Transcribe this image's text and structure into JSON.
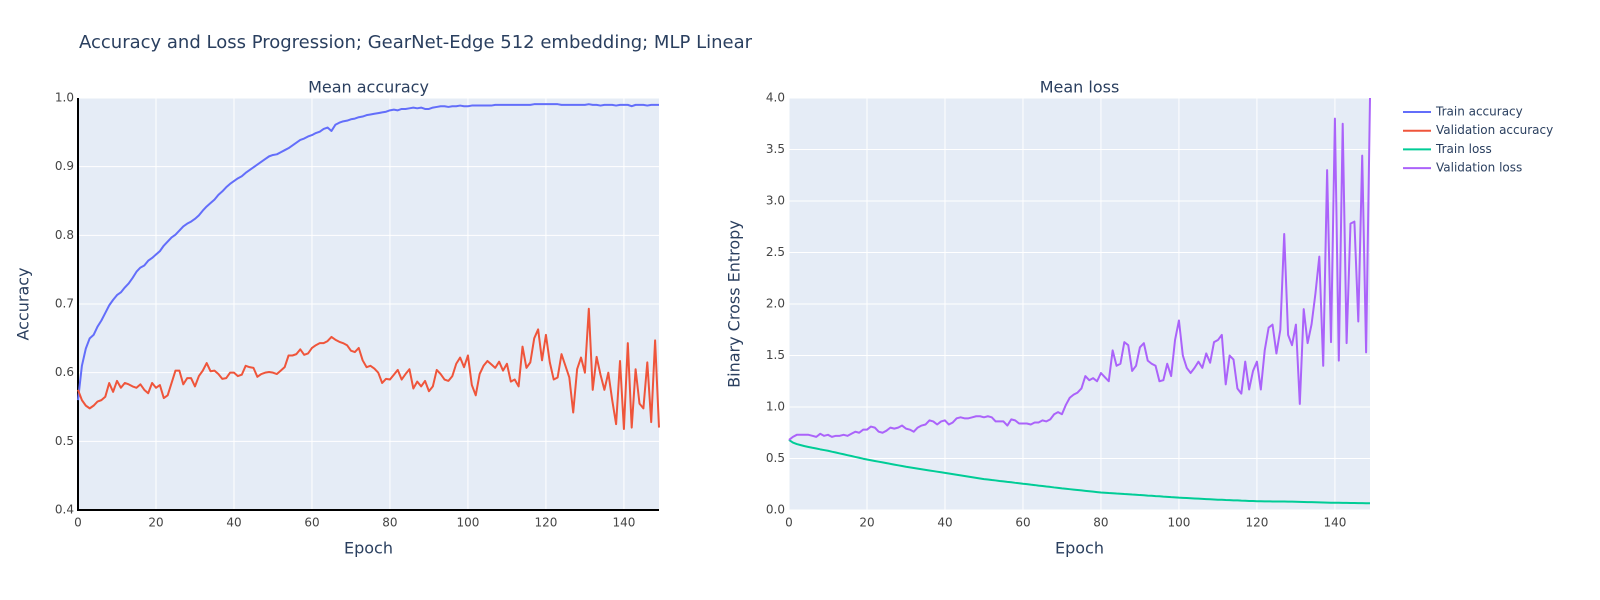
{
  "title": "Accuracy and Loss Progression; GearNet-Edge 512 embedding; MLP Linear",
  "chart_data": [
    {
      "type": "line",
      "title": "Mean accuracy",
      "x_label": "Epoch",
      "y_label": "Accuracy",
      "axis_lines": true,
      "x": [
        0,
        1,
        2,
        3,
        4,
        5,
        6,
        7,
        8,
        9,
        10,
        11,
        12,
        13,
        14,
        15,
        16,
        17,
        18,
        19,
        20,
        21,
        22,
        23,
        24,
        25,
        26,
        27,
        28,
        29,
        30,
        31,
        32,
        33,
        34,
        35,
        36,
        37,
        38,
        39,
        40,
        41,
        42,
        43,
        44,
        45,
        46,
        47,
        48,
        49,
        50,
        51,
        52,
        53,
        54,
        55,
        56,
        57,
        58,
        59,
        60,
        61,
        62,
        63,
        64,
        65,
        66,
        67,
        68,
        69,
        70,
        71,
        72,
        73,
        74,
        75,
        76,
        77,
        78,
        79,
        80,
        81,
        82,
        83,
        84,
        85,
        86,
        87,
        88,
        89,
        90,
        91,
        92,
        93,
        94,
        95,
        96,
        97,
        98,
        99,
        100,
        101,
        102,
        103,
        104,
        105,
        106,
        107,
        108,
        109,
        110,
        111,
        112,
        113,
        114,
        115,
        116,
        117,
        118,
        119,
        120,
        121,
        122,
        123,
        124,
        125,
        126,
        127,
        128,
        129,
        130,
        131,
        132,
        133,
        134,
        135,
        136,
        137,
        138,
        139,
        140,
        141,
        142,
        143,
        144,
        145,
        146,
        147,
        148,
        149
      ],
      "xlim": [
        0,
        149
      ],
      "xticks": [
        0,
        20,
        40,
        60,
        80,
        100,
        120,
        140
      ],
      "ylim": [
        0.4,
        1
      ],
      "yticks": [
        0.4,
        0.5,
        0.6,
        0.7,
        0.8,
        0.9,
        {
          "value": 1,
          "label": "1.0"
        }
      ],
      "grid": true,
      "series": [
        {
          "name": "Train accuracy",
          "color": "#636efa",
          "values": [
            0.56,
            0.61,
            0.635,
            0.65,
            0.655,
            0.667,
            0.676,
            0.687,
            0.698,
            0.706,
            0.713,
            0.717,
            0.724,
            0.73,
            0.738,
            0.747,
            0.753,
            0.756,
            0.763,
            0.767,
            0.772,
            0.777,
            0.785,
            0.791,
            0.797,
            0.801,
            0.807,
            0.813,
            0.817,
            0.82,
            0.824,
            0.829,
            0.836,
            0.842,
            0.847,
            0.852,
            0.859,
            0.864,
            0.87,
            0.875,
            0.879,
            0.883,
            0.886,
            0.891,
            0.895,
            0.899,
            0.903,
            0.907,
            0.911,
            0.915,
            0.917,
            0.918,
            0.921,
            0.924,
            0.927,
            0.931,
            0.935,
            0.939,
            0.941,
            0.944,
            0.946,
            0.949,
            0.951,
            0.955,
            0.957,
            0.952,
            0.961,
            0.964,
            0.966,
            0.967,
            0.969,
            0.97,
            0.972,
            0.973,
            0.975,
            0.976,
            0.977,
            0.978,
            0.979,
            0.98,
            0.982,
            0.983,
            0.982,
            0.984,
            0.984,
            0.985,
            0.986,
            0.985,
            0.986,
            0.984,
            0.984,
            0.986,
            0.987,
            0.988,
            0.988,
            0.987,
            0.988,
            0.988,
            0.989,
            0.988,
            0.988,
            0.989,
            0.989,
            0.989,
            0.989,
            0.989,
            0.989,
            0.99,
            0.99,
            0.99,
            0.99,
            0.99,
            0.99,
            0.99,
            0.99,
            0.99,
            0.99,
            0.991,
            0.991,
            0.991,
            0.991,
            0.991,
            0.991,
            0.991,
            0.99,
            0.99,
            0.99,
            0.99,
            0.99,
            0.99,
            0.99,
            0.991,
            0.99,
            0.99,
            0.989,
            0.99,
            0.99,
            0.99,
            0.989,
            0.99,
            0.99,
            0.99,
            0.988,
            0.99,
            0.99,
            0.99,
            0.989,
            0.99,
            0.99,
            0.99
          ]
        },
        {
          "name": "Validation accuracy",
          "color": "#ef553b",
          "values": [
            0.575,
            0.56,
            0.552,
            0.548,
            0.552,
            0.558,
            0.56,
            0.565,
            0.585,
            0.572,
            0.588,
            0.578,
            0.585,
            0.583,
            0.58,
            0.578,
            0.583,
            0.575,
            0.57,
            0.585,
            0.578,
            0.582,
            0.563,
            0.567,
            0.585,
            0.603,
            0.603,
            0.583,
            0.592,
            0.592,
            0.58,
            0.595,
            0.603,
            0.614,
            0.602,
            0.603,
            0.598,
            0.591,
            0.592,
            0.6,
            0.6,
            0.595,
            0.597,
            0.61,
            0.608,
            0.607,
            0.594,
            0.598,
            0.6,
            0.601,
            0.6,
            0.598,
            0.603,
            0.608,
            0.625,
            0.625,
            0.627,
            0.634,
            0.626,
            0.628,
            0.636,
            0.64,
            0.643,
            0.643,
            0.646,
            0.652,
            0.648,
            0.645,
            0.643,
            0.64,
            0.632,
            0.63,
            0.636,
            0.618,
            0.608,
            0.61,
            0.606,
            0.6,
            0.585,
            0.591,
            0.59,
            0.597,
            0.604,
            0.59,
            0.598,
            0.605,
            0.577,
            0.587,
            0.58,
            0.588,
            0.573,
            0.58,
            0.604,
            0.598,
            0.59,
            0.588,
            0.595,
            0.613,
            0.622,
            0.608,
            0.625,
            0.582,
            0.567,
            0.598,
            0.61,
            0.617,
            0.612,
            0.607,
            0.616,
            0.603,
            0.613,
            0.587,
            0.59,
            0.58,
            0.638,
            0.607,
            0.615,
            0.65,
            0.663,
            0.618,
            0.655,
            0.615,
            0.59,
            0.593,
            0.627,
            0.61,
            0.593,
            0.542,
            0.605,
            0.622,
            0.6,
            0.693,
            0.575,
            0.623,
            0.597,
            0.575,
            0.6,
            0.56,
            0.525,
            0.617,
            0.518,
            0.643,
            0.52,
            0.605,
            0.555,
            0.548,
            0.615,
            0.528,
            0.647,
            0.52
          ]
        }
      ]
    },
    {
      "type": "line",
      "title": "Mean loss",
      "x_label": "Epoch",
      "y_label": "Binary Cross Entropy",
      "axis_lines": false,
      "x": [
        0,
        1,
        2,
        3,
        4,
        5,
        6,
        7,
        8,
        9,
        10,
        11,
        12,
        13,
        14,
        15,
        16,
        17,
        18,
        19,
        20,
        21,
        22,
        23,
        24,
        25,
        26,
        27,
        28,
        29,
        30,
        31,
        32,
        33,
        34,
        35,
        36,
        37,
        38,
        39,
        40,
        41,
        42,
        43,
        44,
        45,
        46,
        47,
        48,
        49,
        50,
        51,
        52,
        53,
        54,
        55,
        56,
        57,
        58,
        59,
        60,
        61,
        62,
        63,
        64,
        65,
        66,
        67,
        68,
        69,
        70,
        71,
        72,
        73,
        74,
        75,
        76,
        77,
        78,
        79,
        80,
        81,
        82,
        83,
        84,
        85,
        86,
        87,
        88,
        89,
        90,
        91,
        92,
        93,
        94,
        95,
        96,
        97,
        98,
        99,
        100,
        101,
        102,
        103,
        104,
        105,
        106,
        107,
        108,
        109,
        110,
        111,
        112,
        113,
        114,
        115,
        116,
        117,
        118,
        119,
        120,
        121,
        122,
        123,
        124,
        125,
        126,
        127,
        128,
        129,
        130,
        131,
        132,
        133,
        134,
        135,
        136,
        137,
        138,
        139,
        140,
        141,
        142,
        143,
        144,
        145,
        146,
        147,
        148,
        149
      ],
      "xlim": [
        0,
        149
      ],
      "xticks": [
        0,
        20,
        40,
        60,
        80,
        100,
        120,
        140
      ],
      "ylim": [
        0,
        4
      ],
      "yticks": [
        {
          "value": 0,
          "label": "0.0"
        },
        0.5,
        {
          "value": 1,
          "label": "1.0"
        },
        1.5,
        {
          "value": 2,
          "label": "2.0"
        },
        2.5,
        {
          "value": 3,
          "label": "3.0"
        },
        3.5,
        {
          "value": 4,
          "label": "4.0"
        }
      ],
      "grid": true,
      "series": [
        {
          "name": "Train loss",
          "color": "#00cc96",
          "values": [
            0.68,
            0.655,
            0.64,
            0.63,
            0.62,
            0.612,
            0.604,
            0.597,
            0.589,
            0.582,
            0.575,
            0.566,
            0.558,
            0.549,
            0.541,
            0.532,
            0.524,
            0.515,
            0.507,
            0.498,
            0.49,
            0.483,
            0.476,
            0.469,
            0.462,
            0.455,
            0.448,
            0.441,
            0.434,
            0.427,
            0.42,
            0.414,
            0.408,
            0.402,
            0.396,
            0.39,
            0.384,
            0.378,
            0.372,
            0.366,
            0.36,
            0.354,
            0.348,
            0.342,
            0.336,
            0.33,
            0.324,
            0.318,
            0.312,
            0.306,
            0.3,
            0.296,
            0.291,
            0.287,
            0.282,
            0.278,
            0.273,
            0.269,
            0.264,
            0.26,
            0.255,
            0.251,
            0.246,
            0.242,
            0.237,
            0.233,
            0.228,
            0.224,
            0.219,
            0.215,
            0.21,
            0.206,
            0.202,
            0.198,
            0.194,
            0.19,
            0.186,
            0.182,
            0.178,
            0.174,
            0.17,
            0.168,
            0.165,
            0.163,
            0.16,
            0.158,
            0.155,
            0.153,
            0.15,
            0.148,
            0.145,
            0.143,
            0.14,
            0.138,
            0.135,
            0.133,
            0.13,
            0.128,
            0.125,
            0.123,
            0.12,
            0.118,
            0.116,
            0.114,
            0.112,
            0.11,
            0.108,
            0.106,
            0.104,
            0.102,
            0.1,
            0.099,
            0.097,
            0.096,
            0.094,
            0.093,
            0.091,
            0.09,
            0.088,
            0.087,
            0.085,
            0.085,
            0.084,
            0.084,
            0.083,
            0.083,
            0.082,
            0.082,
            0.081,
            0.081,
            0.08,
            0.079,
            0.078,
            0.077,
            0.076,
            0.075,
            0.074,
            0.073,
            0.072,
            0.071,
            0.07,
            0.07,
            0.069,
            0.069,
            0.068,
            0.068,
            0.067,
            0.067,
            0.066,
            0.065
          ]
        },
        {
          "name": "Validation loss",
          "color": "#ab63fa",
          "values": [
            0.68,
            0.71,
            0.73,
            0.73,
            0.73,
            0.73,
            0.72,
            0.71,
            0.74,
            0.72,
            0.73,
            0.71,
            0.72,
            0.72,
            0.73,
            0.72,
            0.74,
            0.76,
            0.75,
            0.78,
            0.78,
            0.81,
            0.8,
            0.76,
            0.75,
            0.77,
            0.8,
            0.79,
            0.8,
            0.82,
            0.79,
            0.78,
            0.76,
            0.8,
            0.82,
            0.83,
            0.87,
            0.86,
            0.83,
            0.86,
            0.87,
            0.83,
            0.85,
            0.89,
            0.9,
            0.89,
            0.89,
            0.9,
            0.91,
            0.91,
            0.9,
            0.91,
            0.9,
            0.86,
            0.86,
            0.86,
            0.82,
            0.88,
            0.87,
            0.84,
            0.84,
            0.84,
            0.83,
            0.85,
            0.85,
            0.87,
            0.86,
            0.88,
            0.93,
            0.95,
            0.93,
            1.02,
            1.09,
            1.12,
            1.14,
            1.18,
            1.3,
            1.26,
            1.28,
            1.25,
            1.33,
            1.29,
            1.25,
            1.55,
            1.4,
            1.42,
            1.63,
            1.6,
            1.35,
            1.4,
            1.58,
            1.62,
            1.45,
            1.42,
            1.4,
            1.25,
            1.26,
            1.42,
            1.3,
            1.65,
            1.84,
            1.5,
            1.38,
            1.33,
            1.38,
            1.44,
            1.38,
            1.52,
            1.43,
            1.63,
            1.65,
            1.7,
            1.22,
            1.5,
            1.46,
            1.18,
            1.13,
            1.44,
            1.17,
            1.35,
            1.44,
            1.17,
            1.55,
            1.77,
            1.8,
            1.52,
            1.75,
            2.68,
            1.7,
            1.6,
            1.8,
            1.03,
            1.95,
            1.62,
            1.8,
            2.1,
            2.46,
            1.4,
            3.3,
            1.63,
            3.8,
            1.45,
            3.75,
            1.62,
            2.78,
            2.8,
            1.83,
            3.44,
            1.53,
            4.0
          ]
        }
      ]
    }
  ]
}
